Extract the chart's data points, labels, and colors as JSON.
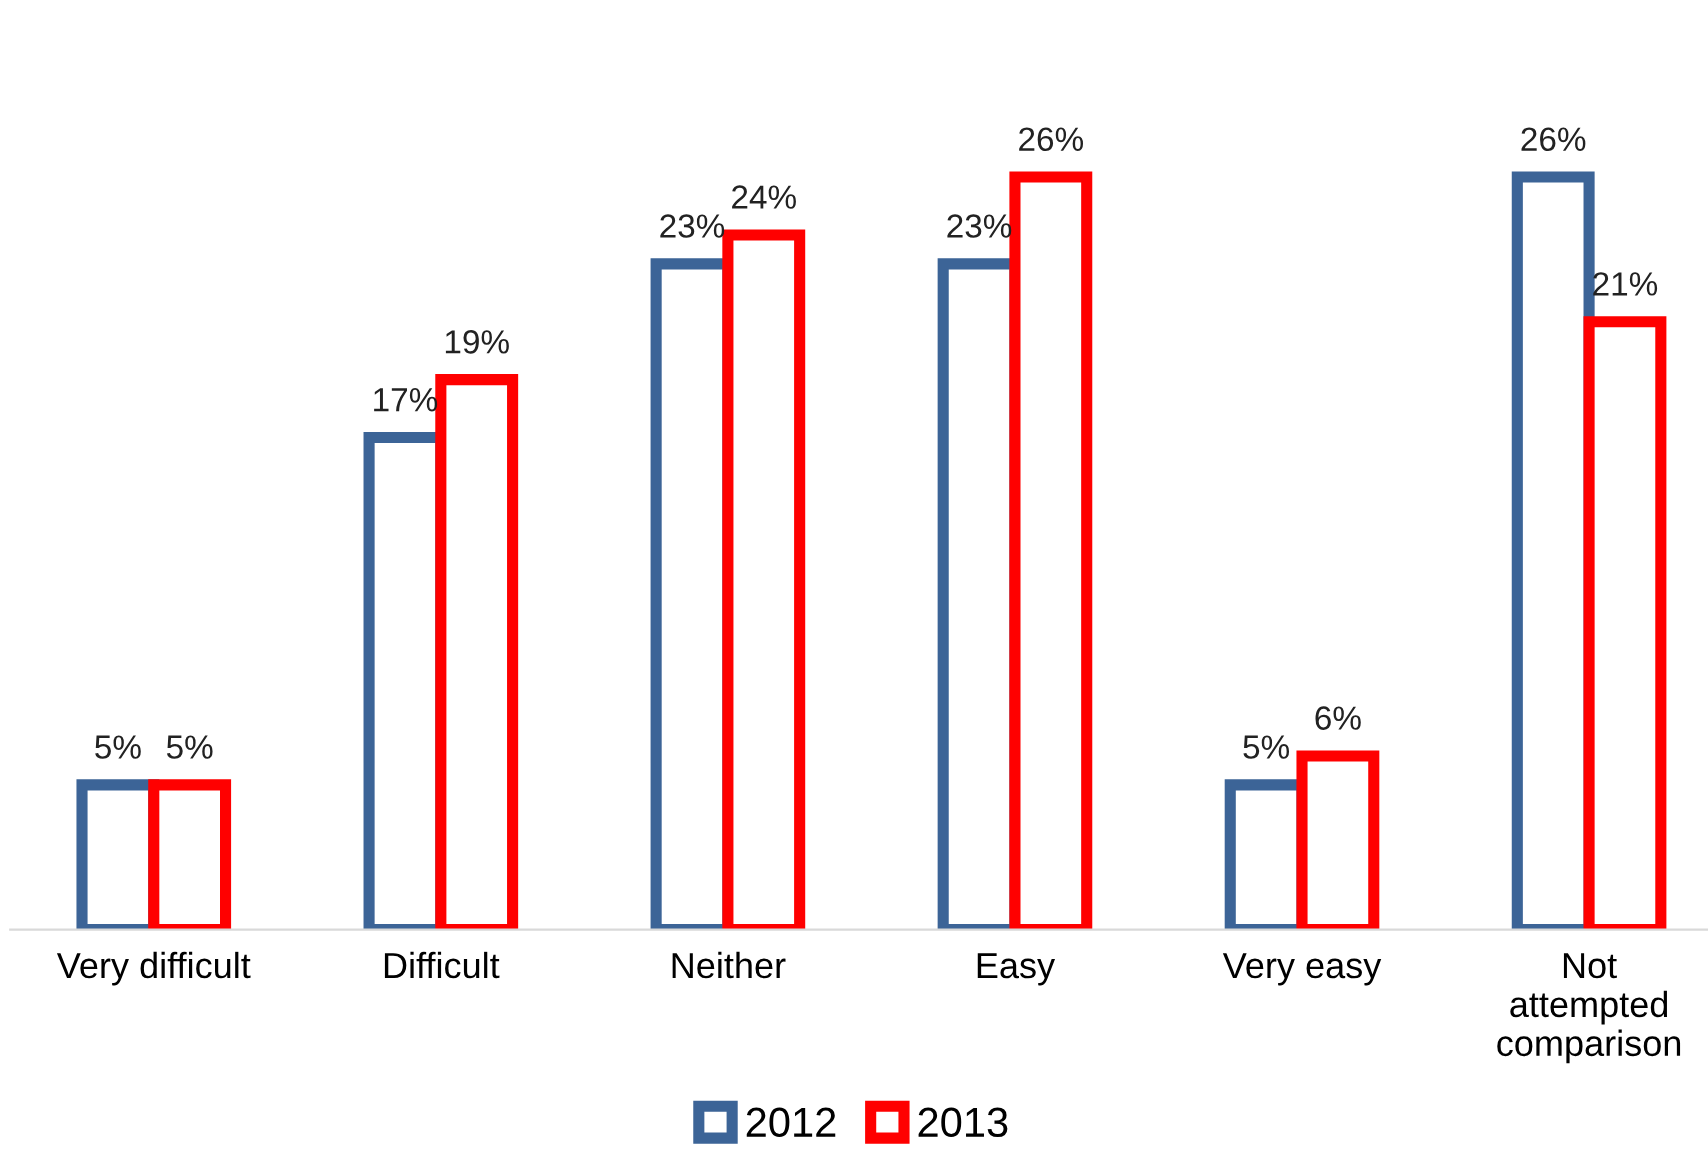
{
  "chart_data": {
    "type": "bar",
    "categories": [
      "Very difficult",
      "Difficult",
      "Neither",
      "Easy",
      "Very easy",
      "Not attempted comparison"
    ],
    "series": [
      {
        "name": "2012",
        "color": "#3c6497",
        "values": [
          5,
          17,
          23,
          23,
          5,
          26
        ],
        "value_labels": [
          "5%",
          "17%",
          "23%",
          "23%",
          "5%",
          "26%"
        ]
      },
      {
        "name": "2013",
        "color": "#ff0000",
        "values": [
          5,
          19,
          24,
          26,
          6,
          21
        ],
        "value_labels": [
          "5%",
          "19%",
          "24%",
          "26%",
          "6%",
          "21%"
        ]
      }
    ],
    "legend": "bottom",
    "grid": false
  }
}
